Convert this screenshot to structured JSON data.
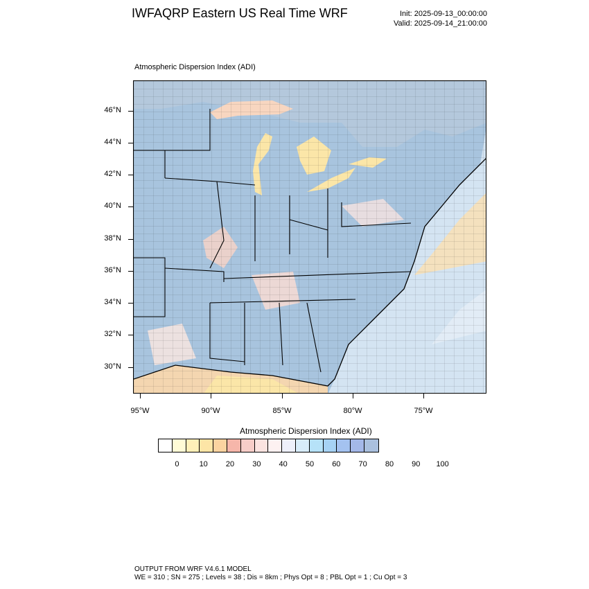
{
  "header": {
    "title": "IWFAQRP Eastern US Real Time WRF",
    "init": "Init: 2025-09-13_00:00:00",
    "valid": "Valid: 2025-09-14_21:00:00"
  },
  "plot_label": "Atmospheric Dispersion Index   (ADI)",
  "map": {
    "lat_labels": [
      "46°N",
      "44°N",
      "42°N",
      "40°N",
      "38°N",
      "36°N",
      "34°N",
      "32°N",
      "30°N"
    ],
    "lon_labels": [
      "95°W",
      "90°W",
      "85°W",
      "80°W",
      "75°W"
    ],
    "colors": {
      "land_high_adi": "#a8c4de",
      "ocean_mid": "#d6e8f4",
      "lake_low_adi": "#fbe6a8",
      "low_adi_red": "#f6b8a8",
      "boundary": "#000000"
    }
  },
  "colorbar": {
    "title": "Atmospheric Dispersion Index  (ADI)",
    "labels": [
      "0",
      "10",
      "20",
      "30",
      "40",
      "50",
      "60",
      "70",
      "80",
      "90",
      "100"
    ],
    "colors": [
      "#ffffff",
      "#fffbd6",
      "#fff0b8",
      "#fde5a6",
      "#fbd3a0",
      "#f6b6aa",
      "#f7cdc8",
      "#fbe3e0",
      "#fdf1f1",
      "#eef0fb",
      "#d8ecfa",
      "#b6e2f8",
      "#a6d2f4",
      "#a4c2f0",
      "#a4b8e8",
      "#aac0de"
    ]
  },
  "footer": {
    "line1": "OUTPUT FROM WRF V4.6.1 MODEL",
    "line2": "WE = 310 ; SN = 275 ; Levels = 38 ; Dis = 8km ; Phys Opt = 8 ; PBL Opt = 1 ; Cu Opt = 3"
  }
}
